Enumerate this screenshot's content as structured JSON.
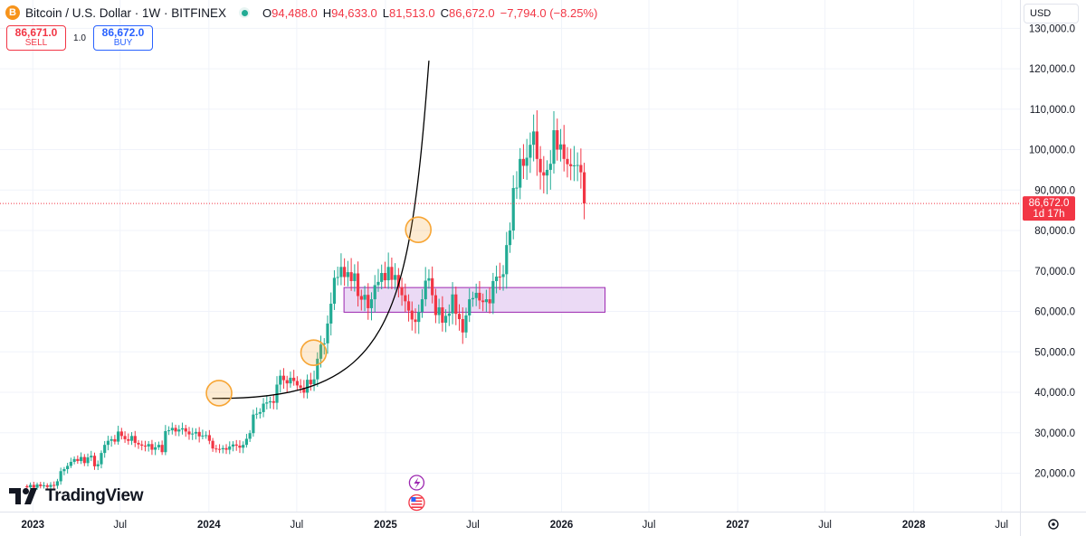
{
  "header": {
    "symbol_icon": "B",
    "title": "Bitcoin / U.S. Dollar · 1W · BITFINEX",
    "ohlc": {
      "o_label": "O",
      "o_value": "94,488.0",
      "h_label": "H",
      "h_value": "94,633.0",
      "l_label": "L",
      "l_value": "81,513.0",
      "c_label": "C",
      "c_value": "86,672.0",
      "change": "−7,794.0 (−8.25%)"
    }
  },
  "trade": {
    "sell_price": "86,671.0",
    "sell_label": "SELL",
    "quantity": "1.0",
    "buy_price": "86,672.0",
    "buy_label": "BUY"
  },
  "currency": "USD",
  "branding": {
    "logo_text": "TradingView"
  },
  "colors": {
    "up": "#22ab94",
    "down": "#f23645",
    "curve": "#000000",
    "circle_stroke": "#f7a534",
    "zone_fill": "#e7d3f3",
    "zone_stroke": "#9c27b0"
  },
  "chart_data": {
    "type": "candlestick",
    "timeframe": "1W",
    "y_axis": {
      "position": "right",
      "ticks": [
        20000,
        30000,
        40000,
        50000,
        60000,
        70000,
        80000,
        90000,
        100000,
        110000,
        120000,
        130000
      ],
      "tick_labels": [
        "20,000.0",
        "30,000.0",
        "40,000.0",
        "50,000.0",
        "60,000.0",
        "70,000.0",
        "80,000.0",
        "90,000.0",
        "100,000.0",
        "110,000.0",
        "120,000.0",
        "130,000.0"
      ],
      "range": [
        10500,
        137000
      ]
    },
    "x_axis": {
      "range": [
        "2022-10-25",
        "2028-08-08"
      ],
      "ticks": [
        {
          "date": "2023-01-01",
          "label": "2023",
          "bold": true
        },
        {
          "date": "2023-07-01",
          "label": "Jul",
          "bold": false
        },
        {
          "date": "2024-01-01",
          "label": "2024",
          "bold": true
        },
        {
          "date": "2024-07-01",
          "label": "Jul",
          "bold": false
        },
        {
          "date": "2025-01-01",
          "label": "2025",
          "bold": true
        },
        {
          "date": "2025-07-01",
          "label": "Jul",
          "bold": false
        },
        {
          "date": "2026-01-01",
          "label": "2026",
          "bold": true
        },
        {
          "date": "2026-07-01",
          "label": "Jul",
          "bold": false
        },
        {
          "date": "2027-01-01",
          "label": "2027",
          "bold": true
        },
        {
          "date": "2027-07-01",
          "label": "Jul",
          "bold": false
        },
        {
          "date": "2028-01-01",
          "label": "2028",
          "bold": true
        },
        {
          "date": "2028-07-01",
          "label": "Jul",
          "bold": false
        }
      ]
    },
    "last_price": {
      "value": 86672.0,
      "label": "86,672.0",
      "countdown": "1d 17h"
    },
    "candle_closes": [
      [
        16500,
        17100,
        16400,
        17200,
        16800,
        17000,
        16600,
        17100,
        16900,
        18000,
        20500,
        21000,
        21800,
        22800,
        23500,
        23000,
        24000,
        22500,
        23900,
        24300,
        21700,
        22200,
        25000,
        27000,
        28000,
        28400,
        27800,
        30300,
        29200,
        28400,
        28000,
        29200,
        27500,
        27100,
        26800,
        26600,
        27200,
        25800,
        26400,
        27000,
        25200,
        30400,
        30600,
        31200,
        30300,
        30800,
        31100,
        30300,
        29600,
        29800,
        30200,
        29100,
        29300,
        29400,
        28000,
        26100,
        26000,
        25900,
        26200,
        25800,
        26600,
        27100,
        26800,
        26300,
        27000,
        28500,
        29900,
        34500,
        34700,
        35100,
        37200,
        37500,
        37800,
        37400,
        41900,
        44100,
        43000,
        42200,
        43600,
        42800,
        41700,
        41100,
        39900,
        43100,
        42000,
        43200,
        48300,
        51800,
        52100,
        57000,
        61900,
        68300,
        68500,
        71000,
        68500,
        69700,
        67500,
        69400,
        63800,
        62900,
        64100,
        60800,
        63000,
        66500,
        67300,
        69500,
        67700,
        71000,
        67800,
        69000,
        66000,
        64000,
        62500,
        60200,
        58000,
        57400,
        59900,
        63000,
        67600,
        68200,
        64000,
        59100,
        61000,
        57200,
        58900,
        59500,
        64200,
        59400,
        58100,
        54800,
        59000,
        63000,
        63300,
        64600,
        62700,
        62300,
        63000,
        62000,
        67500,
        68600,
        68500,
        69200,
        76400,
        80000,
        90500,
        90600,
        97700,
        96000,
        98000,
        101200,
        104500,
        97700,
        94400,
        93600,
        95000,
        96500,
        104800,
        100000,
        101300,
        97700,
        96400,
        95900,
        96100,
        96200,
        94400,
        86672
      ]
    ],
    "candle_series_start": "2022-12-20",
    "annotations": {
      "curve": {
        "type": "parabolic-trendline",
        "start": {
          "date": "2024-01-08",
          "value": 38500
        },
        "end": {
          "date": "2025-04-01",
          "value": 122000
        }
      },
      "circles": [
        {
          "date": "2024-01-22",
          "value": 39800
        },
        {
          "date": "2024-08-05",
          "value": 49800
        },
        {
          "date": "2025-03-10",
          "value": 80200
        }
      ],
      "zone": {
        "start": "2024-10-07",
        "end": "2026-04-01",
        "low": 59800,
        "high": 65900
      }
    }
  }
}
